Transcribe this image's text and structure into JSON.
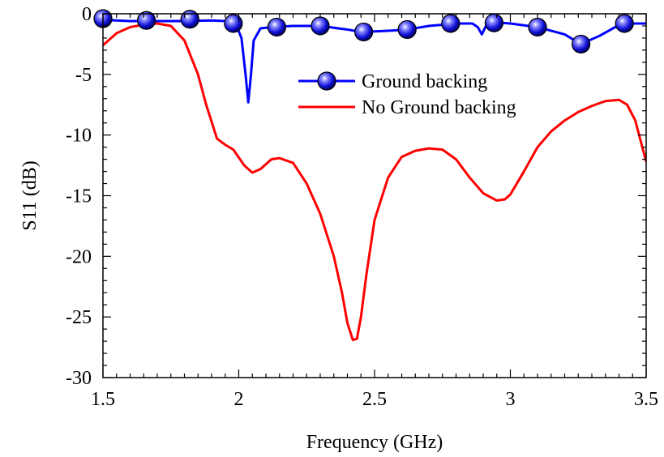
{
  "chart_data": {
    "type": "line",
    "title": "",
    "xlabel": "Frequency (GHz)",
    "ylabel": "S11 (dB)",
    "xlim": [
      1.5,
      3.5
    ],
    "ylim": [
      -30,
      0
    ],
    "xticks": [
      1.5,
      2,
      2.5,
      3,
      3.5
    ],
    "xtick_labels": [
      "1.5",
      "2",
      "2.5",
      "3",
      "3.5"
    ],
    "yticks": [
      0,
      -5,
      -10,
      -15,
      -20,
      -25,
      -30
    ],
    "ytick_labels": [
      "0",
      "-5",
      "-10",
      "-15",
      "-20",
      "-25",
      "-30"
    ],
    "grid": false,
    "legend_position": "upper-center",
    "series": [
      {
        "name": "Ground backing",
        "color": "#0000ff",
        "marker": "sphere",
        "x": [
          1.5,
          1.6,
          1.7,
          1.8,
          1.9,
          1.95,
          1.99,
          2.01,
          2.025,
          2.035,
          2.045,
          2.055,
          2.08,
          2.12,
          2.2,
          2.3,
          2.4,
          2.45,
          2.55,
          2.62,
          2.7,
          2.8,
          2.86,
          2.88,
          2.895,
          2.91,
          2.94,
          3.0,
          3.1,
          3.2,
          3.26,
          3.33,
          3.41,
          3.5
        ],
        "y": [
          -0.5,
          -0.6,
          -0.6,
          -0.6,
          -0.55,
          -0.6,
          -0.9,
          -2.0,
          -5.0,
          -7.3,
          -5.0,
          -2.2,
          -1.2,
          -1.1,
          -1.0,
          -1.0,
          -1.3,
          -1.5,
          -1.4,
          -1.3,
          -1.0,
          -0.8,
          -0.8,
          -1.1,
          -1.7,
          -1.0,
          -0.7,
          -0.8,
          -1.1,
          -1.7,
          -2.5,
          -1.8,
          -0.8,
          -0.8
        ],
        "markers_x": [
          1.5,
          1.66,
          1.82,
          1.98,
          2.14,
          2.3,
          2.46,
          2.62,
          2.78,
          2.94,
          3.1,
          3.26,
          3.42
        ],
        "markers_y": [
          -0.4,
          -0.55,
          -0.45,
          -0.8,
          -1.1,
          -1.0,
          -1.5,
          -1.3,
          -0.8,
          -0.75,
          -1.1,
          -2.5,
          -0.8
        ]
      },
      {
        "name": "No Ground backing",
        "color": "#ff0000",
        "x": [
          1.5,
          1.55,
          1.6,
          1.65,
          1.7,
          1.75,
          1.8,
          1.85,
          1.88,
          1.92,
          1.95,
          1.98,
          2.02,
          2.05,
          2.08,
          2.12,
          2.15,
          2.2,
          2.25,
          2.3,
          2.35,
          2.38,
          2.4,
          2.42,
          2.435,
          2.45,
          2.47,
          2.5,
          2.55,
          2.6,
          2.65,
          2.7,
          2.75,
          2.8,
          2.85,
          2.9,
          2.95,
          2.98,
          3.0,
          3.05,
          3.1,
          3.15,
          3.2,
          3.25,
          3.3,
          3.35,
          3.4,
          3.43,
          3.46,
          3.5
        ],
        "y": [
          -2.6,
          -1.6,
          -1.1,
          -0.9,
          -0.8,
          -1.0,
          -2.2,
          -5.0,
          -7.5,
          -10.3,
          -10.8,
          -11.2,
          -12.5,
          -13.1,
          -12.8,
          -12.0,
          -11.9,
          -12.3,
          -14.0,
          -16.5,
          -20.0,
          -23.0,
          -25.5,
          -26.9,
          -26.8,
          -25.0,
          -21.5,
          -17.0,
          -13.5,
          -11.8,
          -11.3,
          -11.1,
          -11.2,
          -12.0,
          -13.5,
          -14.8,
          -15.4,
          -15.3,
          -14.9,
          -13.0,
          -11.0,
          -9.7,
          -8.8,
          -8.1,
          -7.6,
          -7.2,
          -7.1,
          -7.5,
          -8.8,
          -12.2
        ]
      }
    ]
  }
}
